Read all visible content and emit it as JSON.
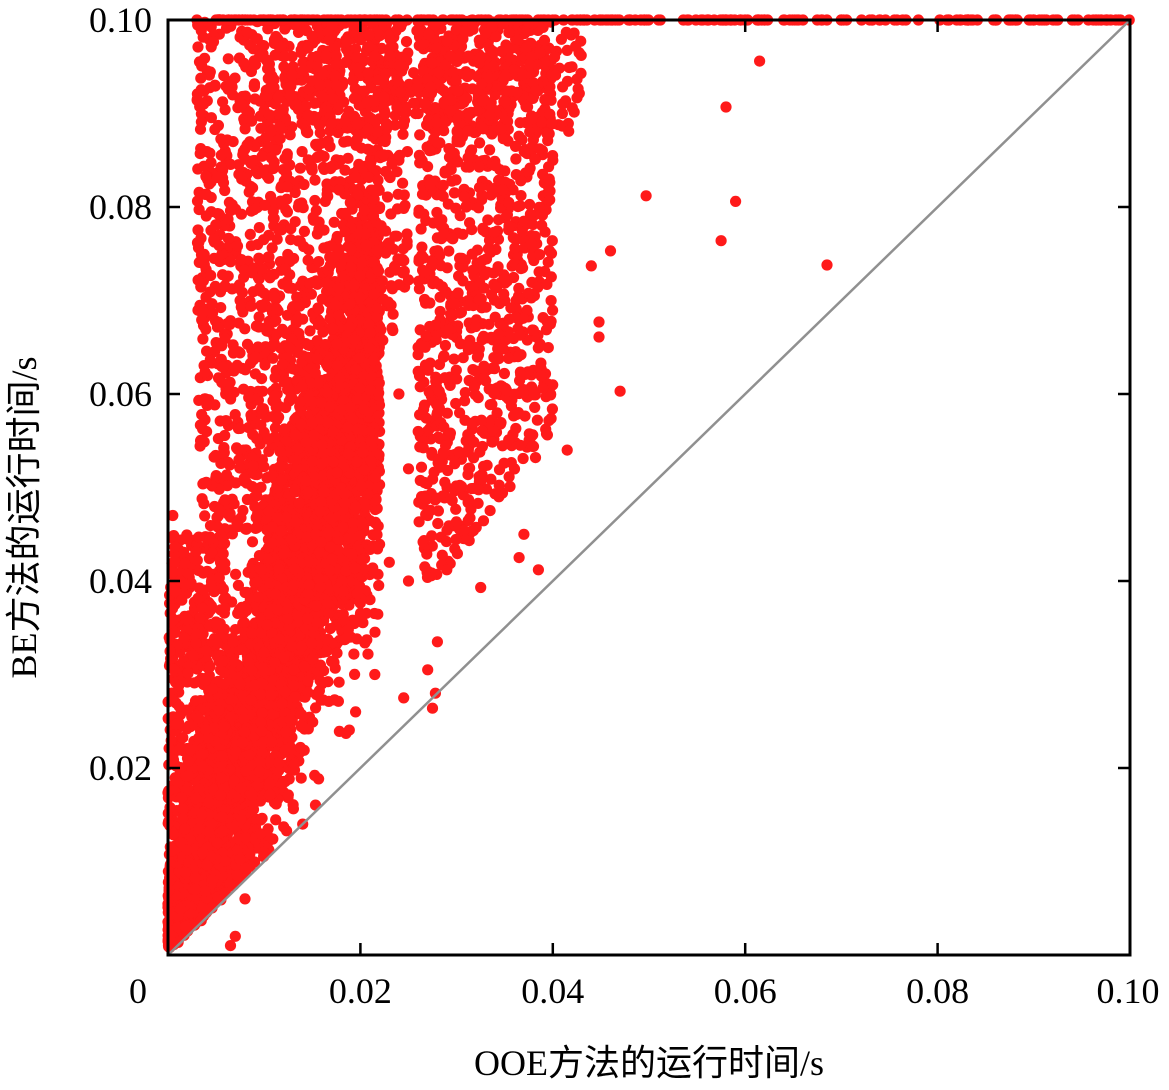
{
  "chart_data": {
    "type": "scatter",
    "title": "",
    "xlabel": "OOE方法的运行时间/s",
    "ylabel": "BE方法的运行时间/s",
    "xlim": [
      0,
      0.1
    ],
    "ylim": [
      0,
      0.1
    ],
    "x_ticks": [
      0,
      0.02,
      0.04,
      0.06,
      0.08,
      0.1
    ],
    "x_tick_labels": [
      "0",
      "0.02",
      "0.04",
      "0.06",
      "0.08",
      "0.10"
    ],
    "y_ticks": [
      0.02,
      0.04,
      0.06,
      0.08,
      0.1
    ],
    "y_tick_labels": [
      "0.02",
      "0.04",
      "0.06",
      "0.08",
      "0.10"
    ],
    "grid": false,
    "legend": "none",
    "point_color": "#ff1a1a",
    "reference_line": {
      "from": [
        0,
        0
      ],
      "to": [
        0.1,
        0.1
      ],
      "color": "#909090"
    },
    "series": [
      {
        "points": [
          [
            0.0045,
            0.0795
          ],
          [
            0.0055,
            0.0838
          ],
          [
            0.0048,
            0.0745
          ],
          [
            0.0065,
            0.075
          ],
          [
            0.008,
            0.0862
          ],
          [
            0.0082,
            0.0835
          ],
          [
            0.0035,
            0.0578
          ],
          [
            0.0058,
            0.0542
          ],
          [
            0.0105,
            0.0885
          ],
          [
            0.012,
            0.084
          ],
          [
            0.013,
            0.095
          ],
          [
            0.011,
            0.078
          ],
          [
            0.005,
            0.0655
          ],
          [
            0.006,
            0.06
          ],
          [
            0.0075,
            0.07
          ],
          [
            0.0185,
            0.0237
          ],
          [
            0.014,
            0.014
          ],
          [
            0.008,
            0.006
          ],
          [
            0.007,
            0.002
          ],
          [
            0.0065,
            0.001
          ],
          [
            0.0325,
            0.0393
          ],
          [
            0.037,
            0.045
          ],
          [
            0.0365,
            0.0425
          ],
          [
            0.0385,
            0.0412
          ],
          [
            0.0382,
            0.0532
          ],
          [
            0.0415,
            0.054
          ],
          [
            0.044,
            0.0737
          ],
          [
            0.0448,
            0.0677
          ],
          [
            0.0448,
            0.0661
          ],
          [
            0.047,
            0.0603
          ],
          [
            0.046,
            0.0753
          ],
          [
            0.0497,
            0.0812
          ],
          [
            0.0575,
            0.0764
          ],
          [
            0.059,
            0.0806
          ],
          [
            0.058,
            0.0907
          ],
          [
            0.0615,
            0.0956
          ],
          [
            0.0685,
            0.0738
          ],
          [
            0.0275,
            0.0264
          ],
          [
            0.0278,
            0.028
          ],
          [
            0.0245,
            0.0275
          ],
          [
            0.027,
            0.0305
          ],
          [
            0.028,
            0.0335
          ],
          [
            0.025,
            0.04
          ],
          [
            0.0215,
            0.03
          ],
          [
            0.0195,
            0.026
          ],
          [
            0.01,
            0.03
          ],
          [
            0.011,
            0.036
          ],
          [
            0.013,
            0.038
          ],
          [
            0.0145,
            0.042
          ],
          [
            0.016,
            0.045
          ],
          [
            0.0175,
            0.048
          ],
          [
            0.019,
            0.052
          ],
          [
            0.02,
            0.056
          ],
          [
            0.017,
            0.06
          ],
          [
            0.0155,
            0.065
          ],
          [
            0.018,
            0.07
          ],
          [
            0.02,
            0.075
          ],
          [
            0.022,
            0.08
          ],
          [
            0.024,
            0.085
          ],
          [
            0.026,
            0.09
          ],
          [
            0.028,
            0.095
          ],
          [
            0.03,
            0.098
          ],
          [
            0.032,
            0.088
          ],
          [
            0.034,
            0.082
          ],
          [
            0.036,
            0.078
          ],
          [
            0.03,
            0.07
          ],
          [
            0.032,
            0.065
          ],
          [
            0.034,
            0.06
          ],
          [
            0.031,
            0.055
          ],
          [
            0.029,
            0.05
          ],
          [
            0.027,
            0.047
          ],
          [
            0.023,
            0.042
          ],
          [
            0.021,
            0.038
          ],
          [
            0.019,
            0.034
          ],
          [
            0.015,
            0.03
          ],
          [
            0.012,
            0.025
          ],
          [
            0.009,
            0.02
          ],
          [
            0.007,
            0.015
          ],
          [
            0.005,
            0.01
          ],
          [
            0.003,
            0.006
          ],
          [
            0.002,
            0.004
          ],
          [
            0.001,
            0.002
          ],
          [
            0.004,
            0.025
          ],
          [
            0.003,
            0.035
          ],
          [
            0.006,
            0.045
          ],
          [
            0.008,
            0.052
          ],
          [
            0.01,
            0.058
          ],
          [
            0.012,
            0.062
          ],
          [
            0.014,
            0.068
          ],
          [
            0.016,
            0.072
          ],
          [
            0.001,
            0.042
          ],
          [
            0.0005,
            0.047
          ],
          [
            0.002,
            0.04
          ],
          [
            0.001,
            0.03
          ],
          [
            0.003,
            0.02
          ],
          [
            0.035,
            0.07
          ],
          [
            0.038,
            0.076
          ],
          [
            0.039,
            0.08
          ],
          [
            0.04,
            0.085
          ],
          [
            0.041,
            0.09
          ],
          [
            0.042,
            0.095
          ],
          [
            0.036,
            0.095
          ],
          [
            0.034,
            0.092
          ],
          [
            0.033,
            0.085
          ],
          [
            0.031,
            0.08
          ],
          [
            0.026,
            0.065
          ],
          [
            0.024,
            0.06
          ],
          [
            0.022,
            0.056
          ],
          [
            0.025,
            0.052
          ],
          [
            0.028,
            0.058
          ]
        ],
        "saturated_points_at_ylim_x": [
          0.003,
          0.008,
          0.012,
          0.015,
          0.018,
          0.021,
          0.024,
          0.027,
          0.03,
          0.033,
          0.036,
          0.039,
          0.042,
          0.045,
          0.048,
          0.051,
          0.054,
          0.058,
          0.062,
          0.066,
          0.07,
          0.074,
          0.078,
          0.082,
          0.086,
          0.09,
          0.094,
          0.097
        ]
      }
    ]
  }
}
